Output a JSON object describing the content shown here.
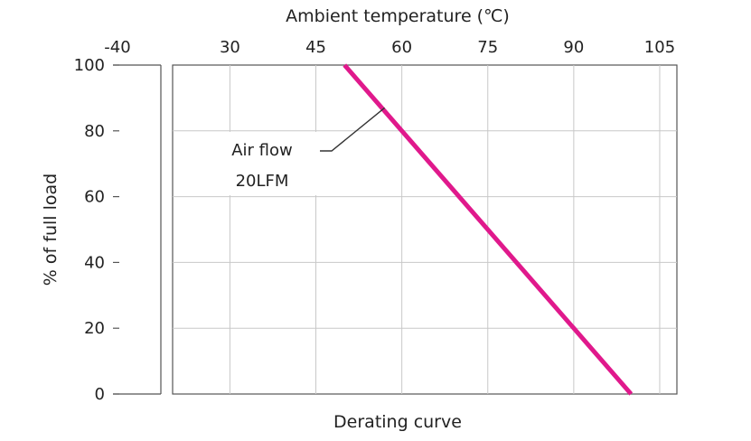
{
  "chart_data": {
    "type": "line",
    "title": "",
    "caption": "Derating curve",
    "xlabel": "Ambient temperature (℃)",
    "ylabel": "% of full load",
    "x_axis_position": "top",
    "x_ticks": [
      "-40",
      "30",
      "45",
      "60",
      "75",
      "90",
      "105"
    ],
    "x_tick_values": [
      -40,
      30,
      45,
      60,
      75,
      90,
      105
    ],
    "x_axis_break": "between -40 and 30",
    "xlim": [
      -40,
      105
    ],
    "y_ticks": [
      0,
      20,
      40,
      60,
      80,
      100
    ],
    "ylim": [
      0,
      100
    ],
    "grid": true,
    "series": [
      {
        "name": "",
        "color": "#e0198c",
        "x": [
          50,
          100
        ],
        "y": [
          100,
          0
        ]
      }
    ],
    "annotations": [
      {
        "text_lines": [
          "Air flow",
          "20LFM"
        ],
        "points_to": {
          "x": 57,
          "y": 87
        }
      }
    ]
  }
}
